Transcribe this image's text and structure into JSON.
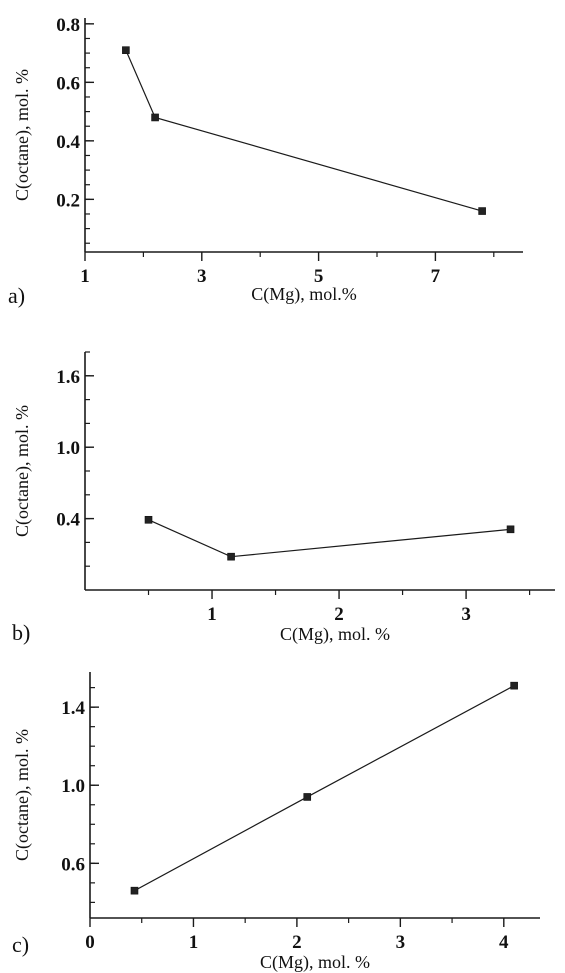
{
  "chart_data": [
    {
      "type": "line",
      "panel_label": "a)",
      "xlabel": "C(Mg), mol.%",
      "ylabel": "C(octane), mol. %",
      "xlim": [
        1,
        8.5
      ],
      "ylim": [
        0.02,
        0.82
      ],
      "xticks": [
        1,
        3,
        5,
        7
      ],
      "yticks": [
        0.2,
        0.4,
        0.6,
        0.8
      ],
      "x": [
        1.7,
        2.2,
        7.8
      ],
      "y": [
        0.71,
        0.48,
        0.16
      ],
      "grid": false
    },
    {
      "type": "line",
      "panel_label": "b)",
      "xlabel": "C(Mg), mol. %",
      "ylabel": "C(octane), mol. %",
      "xlim": [
        0,
        3.7
      ],
      "ylim": [
        -0.2,
        1.8
      ],
      "xticks": [
        1,
        2,
        3
      ],
      "yticks": [
        0.4,
        1.0,
        1.6
      ],
      "x": [
        0.5,
        1.15,
        3.35
      ],
      "y": [
        0.39,
        0.08,
        0.31
      ],
      "grid": false
    },
    {
      "type": "line",
      "panel_label": "c)",
      "xlabel": "C(Mg), mol. %",
      "ylabel": "C(octane), mol. %",
      "xlim": [
        0,
        4.35
      ],
      "ylim": [
        0.32,
        1.58
      ],
      "xticks": [
        0,
        1,
        2,
        3,
        4
      ],
      "yticks": [
        0.6,
        1.0,
        1.4
      ],
      "x": [
        0.43,
        2.1,
        4.1
      ],
      "y": [
        0.46,
        0.94,
        1.51
      ],
      "grid": false
    }
  ]
}
